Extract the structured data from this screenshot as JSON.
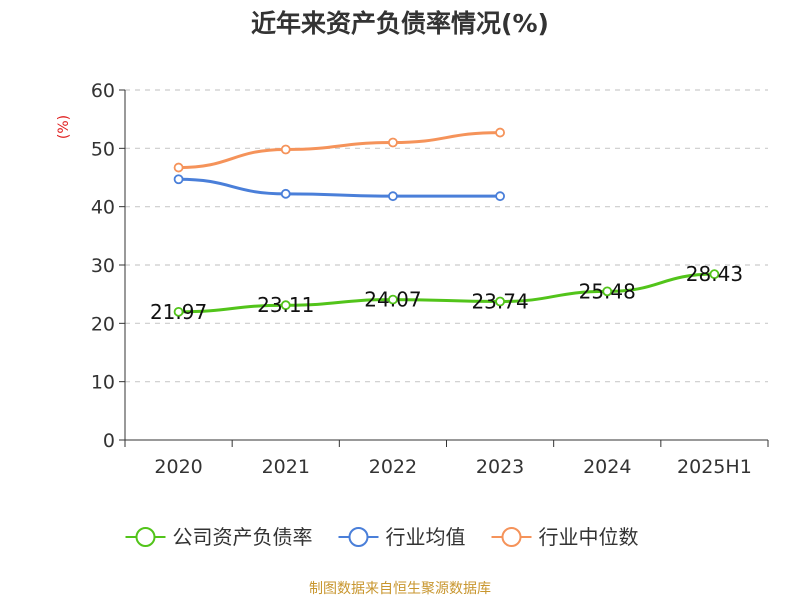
{
  "chart_data": {
    "type": "line",
    "title": "近年来资产负债率情况(%)",
    "ylabel": "(%)",
    "xlabel": "",
    "categories": [
      "2020",
      "2021",
      "2022",
      "2023",
      "2024",
      "2025H1"
    ],
    "ylim": [
      0,
      60
    ],
    "yticks": [
      0,
      10,
      20,
      30,
      40,
      50,
      60
    ],
    "grid": true,
    "legend_position": "bottom",
    "series": [
      {
        "name": "公司资产负债率",
        "color": "#52c41a",
        "values": [
          21.97,
          23.11,
          24.07,
          23.74,
          25.48,
          28.43
        ],
        "labels": [
          "21.97",
          "23.11",
          "24.07",
          "23.74",
          "25.48",
          "28.43"
        ]
      },
      {
        "name": "行业均值",
        "color": "#4a7fd9",
        "values": [
          44.7,
          42.2,
          41.8,
          41.8,
          null,
          null
        ]
      },
      {
        "name": "行业中位数",
        "color": "#f5935a",
        "values": [
          46.7,
          49.8,
          51.0,
          52.7,
          null,
          null
        ]
      }
    ]
  },
  "source": "制图数据来自恒生聚源数据库"
}
